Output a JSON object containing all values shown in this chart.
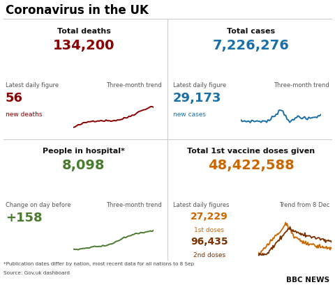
{
  "title": "Coronavirus in the UK",
  "bg_color": "#ffffff",
  "title_color": "#000000",
  "panels": [
    {
      "section_title": "Total deaths",
      "big_number": "134,200",
      "big_number_color": "#8b0000",
      "label1": "Latest daily figure",
      "label2": "Three-month trend",
      "small_number": "56",
      "small_number_color": "#8b0000",
      "small_label": "new deaths",
      "small_label_color": "#8b0000",
      "trend_color": "#8b0000",
      "trend_type": "deaths"
    },
    {
      "section_title": "Total cases",
      "big_number": "7,226,276",
      "big_number_color": "#1a6fa8",
      "label1": "Latest daily figure",
      "label2": "Three-month trend",
      "small_number": "29,173",
      "small_number_color": "#1a6fa8",
      "small_label": "new cases",
      "small_label_color": "#1a6fa8",
      "trend_color": "#1a6fa8",
      "trend_type": "cases"
    },
    {
      "section_title": "People in hospital*",
      "big_number": "8,098",
      "big_number_color": "#4a7c2f",
      "label1": "Change on day before",
      "label2": "Three-month trend",
      "small_number": "+158",
      "small_number_color": "#4a7c2f",
      "small_label": "",
      "small_label_color": "#4a7c2f",
      "trend_color": "#4a7c2f",
      "trend_type": "hospital"
    },
    {
      "section_title": "Total 1st vaccine doses given",
      "big_number": "48,422,588",
      "big_number_color": "#cc6600",
      "label1": "Latest daily figures",
      "label2": "Trend from 8 Dec",
      "small_number": "27,229",
      "small_number_color": "#cc6600",
      "small_label": "1st doses",
      "small_label_color": "#cc6600",
      "small_number2": "96,435",
      "small_number2_color": "#7b3000",
      "small_label2": "2nd doses",
      "small_label2_color": "#7b3000",
      "trend_type": "vaccine",
      "trend_color1": "#cc6600",
      "trend_color2": "#7b3000"
    }
  ],
  "footer1": "*Publication dates differ by nation, most recent data for all nations to 8 Sep",
  "footer2": "Source: Gov.uk dashboard",
  "bbc_text": "BBC NEWS",
  "divider_color": "#cccccc",
  "label_color": "#555555"
}
